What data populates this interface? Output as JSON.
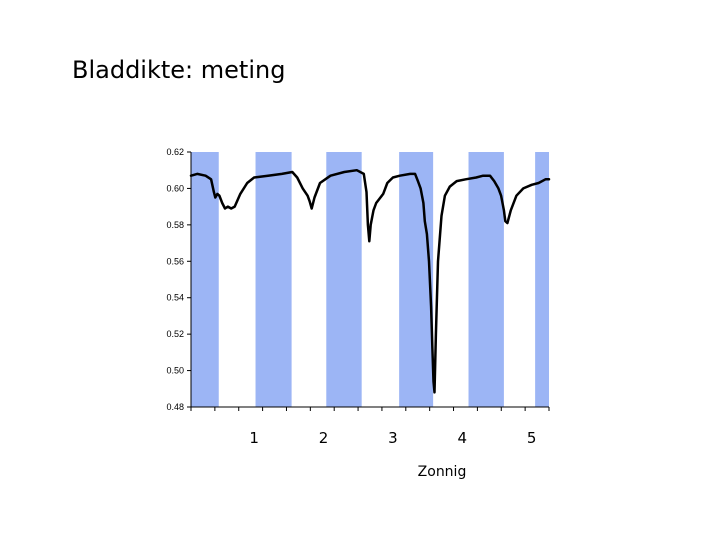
{
  "slide": {
    "title": "Bladdikte: meting"
  },
  "chart_data": {
    "type": "line",
    "title": "",
    "xlabel": "Zonnig",
    "ylabel": "",
    "xlim": [
      0.09,
      5.25
    ],
    "ylim": [
      0.48,
      0.62
    ],
    "yticks": [
      "0.62",
      "0.60",
      "0.58",
      "0.56",
      "0.54",
      "0.52",
      "0.50",
      "0.48"
    ],
    "xticks": [
      {
        "value": 1,
        "label": "1"
      },
      {
        "value": 2,
        "label": "2"
      },
      {
        "value": 3,
        "label": "3"
      },
      {
        "value": 4,
        "label": "4"
      },
      {
        "value": 5,
        "label": "5"
      }
    ],
    "grid": false,
    "band_color": "#9cb5f5",
    "line_color": "#000000",
    "bands": [
      [
        0.09,
        0.49
      ],
      [
        1.02,
        1.54
      ],
      [
        2.04,
        2.55
      ],
      [
        3.09,
        3.58
      ],
      [
        4.09,
        4.6
      ],
      [
        5.05,
        5.25
      ]
    ],
    "series": [
      {
        "values": [
          [
            0.09,
            0.607
          ],
          [
            0.18,
            0.608
          ],
          [
            0.3,
            0.607
          ],
          [
            0.38,
            0.605
          ],
          [
            0.42,
            0.598
          ],
          [
            0.44,
            0.595
          ],
          [
            0.47,
            0.597
          ],
          [
            0.5,
            0.596
          ],
          [
            0.54,
            0.592
          ],
          [
            0.58,
            0.589
          ],
          [
            0.62,
            0.59
          ],
          [
            0.67,
            0.589
          ],
          [
            0.72,
            0.59
          ],
          [
            0.8,
            0.597
          ],
          [
            0.9,
            0.603
          ],
          [
            1.0,
            0.606
          ],
          [
            1.2,
            0.607
          ],
          [
            1.4,
            0.608
          ],
          [
            1.55,
            0.609
          ],
          [
            1.62,
            0.606
          ],
          [
            1.7,
            0.6
          ],
          [
            1.77,
            0.596
          ],
          [
            1.8,
            0.593
          ],
          [
            1.83,
            0.589
          ],
          [
            1.87,
            0.595
          ],
          [
            1.95,
            0.603
          ],
          [
            2.1,
            0.607
          ],
          [
            2.3,
            0.609
          ],
          [
            2.48,
            0.61
          ],
          [
            2.58,
            0.608
          ],
          [
            2.62,
            0.598
          ],
          [
            2.64,
            0.58
          ],
          [
            2.66,
            0.571
          ],
          [
            2.68,
            0.58
          ],
          [
            2.72,
            0.588
          ],
          [
            2.76,
            0.592
          ],
          [
            2.8,
            0.594
          ],
          [
            2.86,
            0.597
          ],
          [
            2.92,
            0.603
          ],
          [
            3.0,
            0.606
          ],
          [
            3.1,
            0.607
          ],
          [
            3.25,
            0.608
          ],
          [
            3.32,
            0.608
          ],
          [
            3.36,
            0.604
          ],
          [
            3.4,
            0.6
          ],
          [
            3.44,
            0.592
          ],
          [
            3.46,
            0.582
          ],
          [
            3.49,
            0.575
          ],
          [
            3.52,
            0.56
          ],
          [
            3.55,
            0.535
          ],
          [
            3.57,
            0.512
          ],
          [
            3.585,
            0.494
          ],
          [
            3.6,
            0.488
          ],
          [
            3.62,
            0.52
          ],
          [
            3.65,
            0.56
          ],
          [
            3.7,
            0.585
          ],
          [
            3.75,
            0.596
          ],
          [
            3.82,
            0.601
          ],
          [
            3.92,
            0.604
          ],
          [
            4.05,
            0.605
          ],
          [
            4.2,
            0.606
          ],
          [
            4.3,
            0.607
          ],
          [
            4.4,
            0.607
          ],
          [
            4.46,
            0.604
          ],
          [
            4.52,
            0.6
          ],
          [
            4.56,
            0.596
          ],
          [
            4.6,
            0.588
          ],
          [
            4.62,
            0.582
          ],
          [
            4.65,
            0.581
          ],
          [
            4.7,
            0.588
          ],
          [
            4.78,
            0.596
          ],
          [
            4.88,
            0.6
          ],
          [
            5.0,
            0.602
          ],
          [
            5.1,
            0.603
          ],
          [
            5.2,
            0.605
          ],
          [
            5.25,
            0.605
          ]
        ]
      }
    ]
  }
}
